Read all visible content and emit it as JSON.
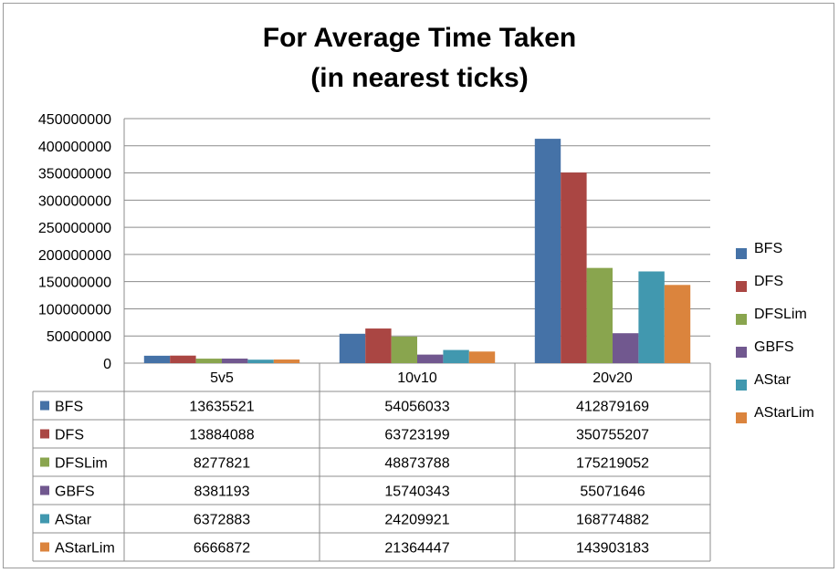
{
  "chart_data": {
    "type": "bar",
    "title_line1": "For Average Time Taken",
    "title_line2": "(in nearest ticks)",
    "categories": [
      "5v5",
      "10v10",
      "20v20"
    ],
    "ylim": [
      0,
      450000000
    ],
    "yticks": [
      0,
      50000000,
      100000000,
      150000000,
      200000000,
      250000000,
      300000000,
      350000000,
      400000000,
      450000000
    ],
    "grid": true,
    "legend_position": "right",
    "series": [
      {
        "name": "BFS",
        "color": "#4572A7",
        "values": [
          13635521,
          54056033,
          412879169
        ]
      },
      {
        "name": "DFS",
        "color": "#AA4643",
        "values": [
          13884088,
          63723199,
          350755207
        ]
      },
      {
        "name": "DFSLim",
        "color": "#89A54E",
        "values": [
          8277821,
          48873788,
          175219052
        ]
      },
      {
        "name": "GBFS",
        "color": "#71588F",
        "values": [
          8381193,
          15740343,
          55071646
        ]
      },
      {
        "name": "AStar",
        "color": "#4198AF",
        "values": [
          6372883,
          24209921,
          168774882
        ]
      },
      {
        "name": "AStarLim",
        "color": "#DB843D",
        "values": [
          6666872,
          21364447,
          143903183
        ]
      }
    ]
  }
}
